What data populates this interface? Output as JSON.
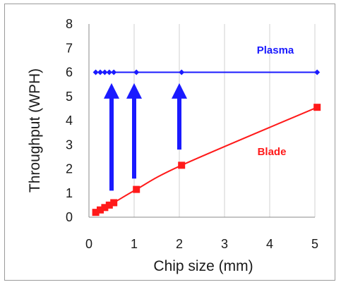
{
  "chart_data": {
    "type": "line",
    "xlabel": "Chip size (mm)",
    "ylabel": "Throughput (WPH)",
    "x_ticks": [
      "0",
      "1",
      "2",
      "3",
      "4",
      "5"
    ],
    "y_ticks": [
      "0",
      "1",
      "2",
      "3",
      "4",
      "5",
      "6",
      "7",
      "8"
    ],
    "xlim": [
      0,
      5
    ],
    "ylim": [
      0,
      8
    ],
    "grid": "vertical",
    "series": [
      {
        "name": "Plasma",
        "color": "#1a1aff",
        "marker": "diamond",
        "x": [
          0.15,
          0.25,
          0.35,
          0.45,
          0.55,
          1.05,
          2.05,
          5.05
        ],
        "y": [
          6,
          6,
          6,
          6,
          6,
          6,
          6,
          6
        ]
      },
      {
        "name": "Blade",
        "color": "#ff1a1a",
        "marker": "square",
        "x": [
          0.15,
          0.25,
          0.35,
          0.45,
          0.55,
          1.05,
          2.05,
          5.05
        ],
        "y": [
          0.2,
          0.3,
          0.4,
          0.5,
          0.6,
          1.15,
          2.15,
          4.55
        ]
      }
    ],
    "arrows": [
      {
        "x": 0.5,
        "y_from": 1.1,
        "y_to": 5.55,
        "color": "#1a1aff"
      },
      {
        "x": 1.0,
        "y_from": 1.6,
        "y_to": 5.55,
        "color": "#1a1aff"
      },
      {
        "x": 2.0,
        "y_from": 2.8,
        "y_to": 5.55,
        "color": "#1a1aff"
      }
    ]
  }
}
